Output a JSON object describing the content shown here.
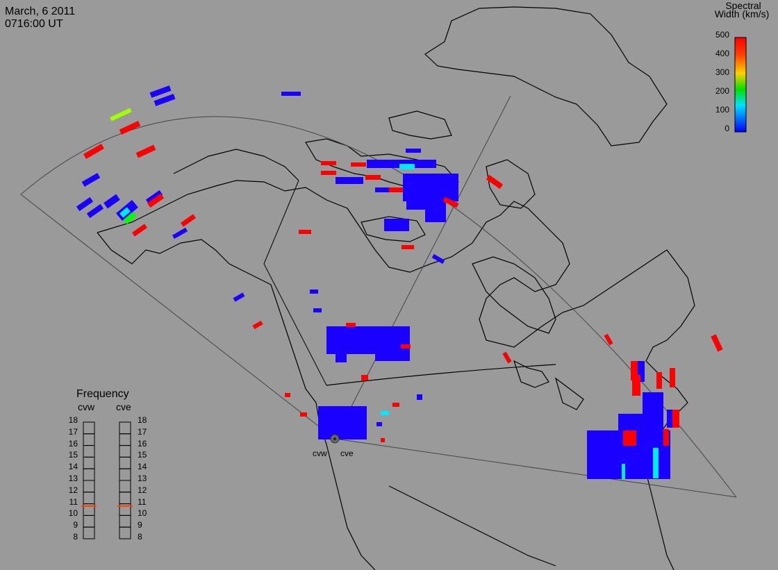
{
  "header": {
    "date": "March, 6 2011",
    "time": "0716:00 UT"
  },
  "colorbar": {
    "title_line1": "Spectral",
    "title_line2": "Width (km/s)",
    "ticks": [
      "500",
      "400",
      "300",
      "200",
      "100",
      "0"
    ],
    "colors": [
      "#ff0000",
      "#ffa000",
      "#ffff00",
      "#00e000",
      "#00e0ff",
      "#0000ff"
    ]
  },
  "frequency_panel": {
    "title": "Frequency",
    "radars": [
      "cvw",
      "cve"
    ],
    "scale": [
      "18",
      "17",
      "16",
      "15",
      "14",
      "13",
      "12",
      "11",
      "10",
      "9",
      "8"
    ],
    "cvw_value_mhz": 10.8,
    "cve_value_mhz": 10.8,
    "marker_color": "#ff4000"
  },
  "sites": {
    "west_label": "cvw",
    "east_label": "cve"
  },
  "scatter_colors": {
    "low": "#1a00ff",
    "high": "#ff0000",
    "mid_green": "#00ff00",
    "yellow_green": "#a0ff00",
    "cyan": "#00e8ff"
  }
}
